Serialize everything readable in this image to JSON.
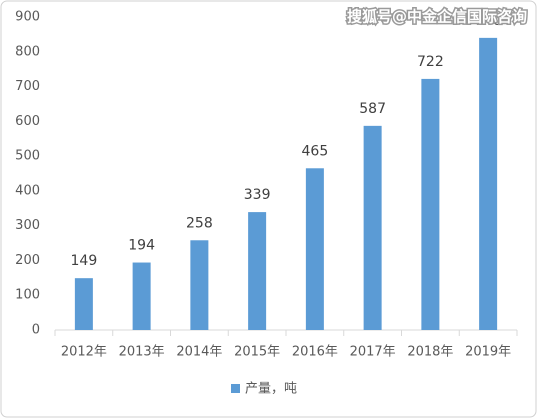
{
  "chart_data": {
    "type": "bar",
    "categories": [
      "2012年",
      "2013年",
      "2014年",
      "2015年",
      "2016年",
      "2017年",
      "2018年",
      "2019年"
    ],
    "series": [
      {
        "name": "产量，吨",
        "color": "#5b9bd5",
        "values": [
          149,
          194,
          258,
          339,
          465,
          587,
          722,
          840
        ]
      }
    ],
    "ylim": [
      0,
      900
    ],
    "yticks": [
      0,
      100,
      200,
      300,
      400,
      500,
      600,
      700,
      800,
      900
    ],
    "grid": false,
    "legend": "bottom",
    "watermark": "搜狐号@中金企信国际咨询"
  }
}
